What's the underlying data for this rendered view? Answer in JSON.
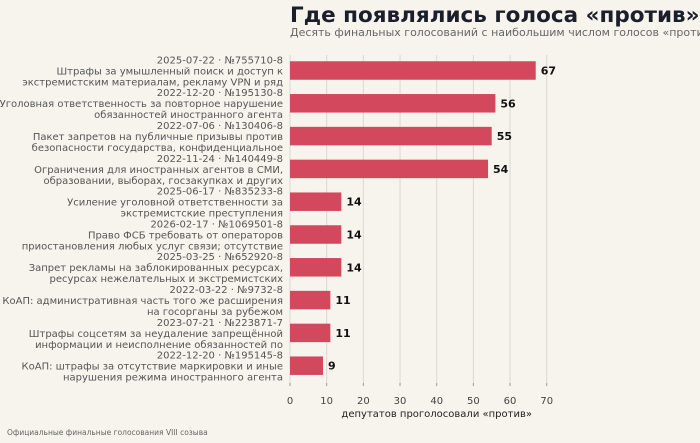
{
  "chart_data": {
    "type": "bar",
    "orientation": "horizontal",
    "title": "Где появлялись голоса «против»",
    "subtitle": "Десять финальных голосований с наибольшим числом голосов «против»",
    "xlabel": "депутатов проголосовали «против»",
    "xlim": [
      0,
      80
    ],
    "xticks": [
      0,
      10,
      20,
      30,
      40,
      50,
      60,
      70
    ],
    "grid": true,
    "bar_color": "#d4485e",
    "categories": [
      [
        "2025-07-22 · №755710-8",
        "Штрафы за умышленный поиск и доступ к",
        "экстремистским материалам, рекламу VPN и ряд"
      ],
      [
        "2022-12-20 · №195130-8",
        "Уголовная ответственность за повторное нарушение",
        "обязанностей иностранного агента"
      ],
      [
        "2022-07-06 · №130406-8",
        "Пакет запретов на публичные призывы против",
        "безопасности государства, конфиденциальное"
      ],
      [
        "2022-11-24 · №140449-8",
        "Ограничения для иностранных агентов в СМИ,",
        "образовании, выборах, госзакупках и других"
      ],
      [
        "2025-06-17 · №835233-8",
        "Усиление уголовной ответственности за",
        "экстремистские преступления"
      ],
      [
        "2026-02-17 · №1069501-8",
        "Право ФСБ требовать от операторов",
        "приостановления любых услуг связи; отсутствие"
      ],
      [
        "2025-03-25 · №652920-8",
        "Запрет рекламы на заблокированных ресурсах,",
        "ресурсах нежелательных и экстремистских"
      ],
      [
        "2022-03-22 · №9732-8",
        "КоАП: административная часть того же расширения",
        "на госорганы за рубежом"
      ],
      [
        "2023-07-21 · №223871-7",
        "Штрафы соцсетям за неудаление запрещённой",
        "информации и неисполнение обязанностей по"
      ],
      [
        "2022-12-20 · №195145-8",
        "КоАП: штрафы за отсутствие маркировки и иные",
        "нарушения режима иностранного агента"
      ]
    ],
    "values": [
      67,
      56,
      55,
      54,
      14,
      14,
      14,
      11,
      11,
      9
    ]
  },
  "footer": "Официальные финальные голосования VIII созыва"
}
